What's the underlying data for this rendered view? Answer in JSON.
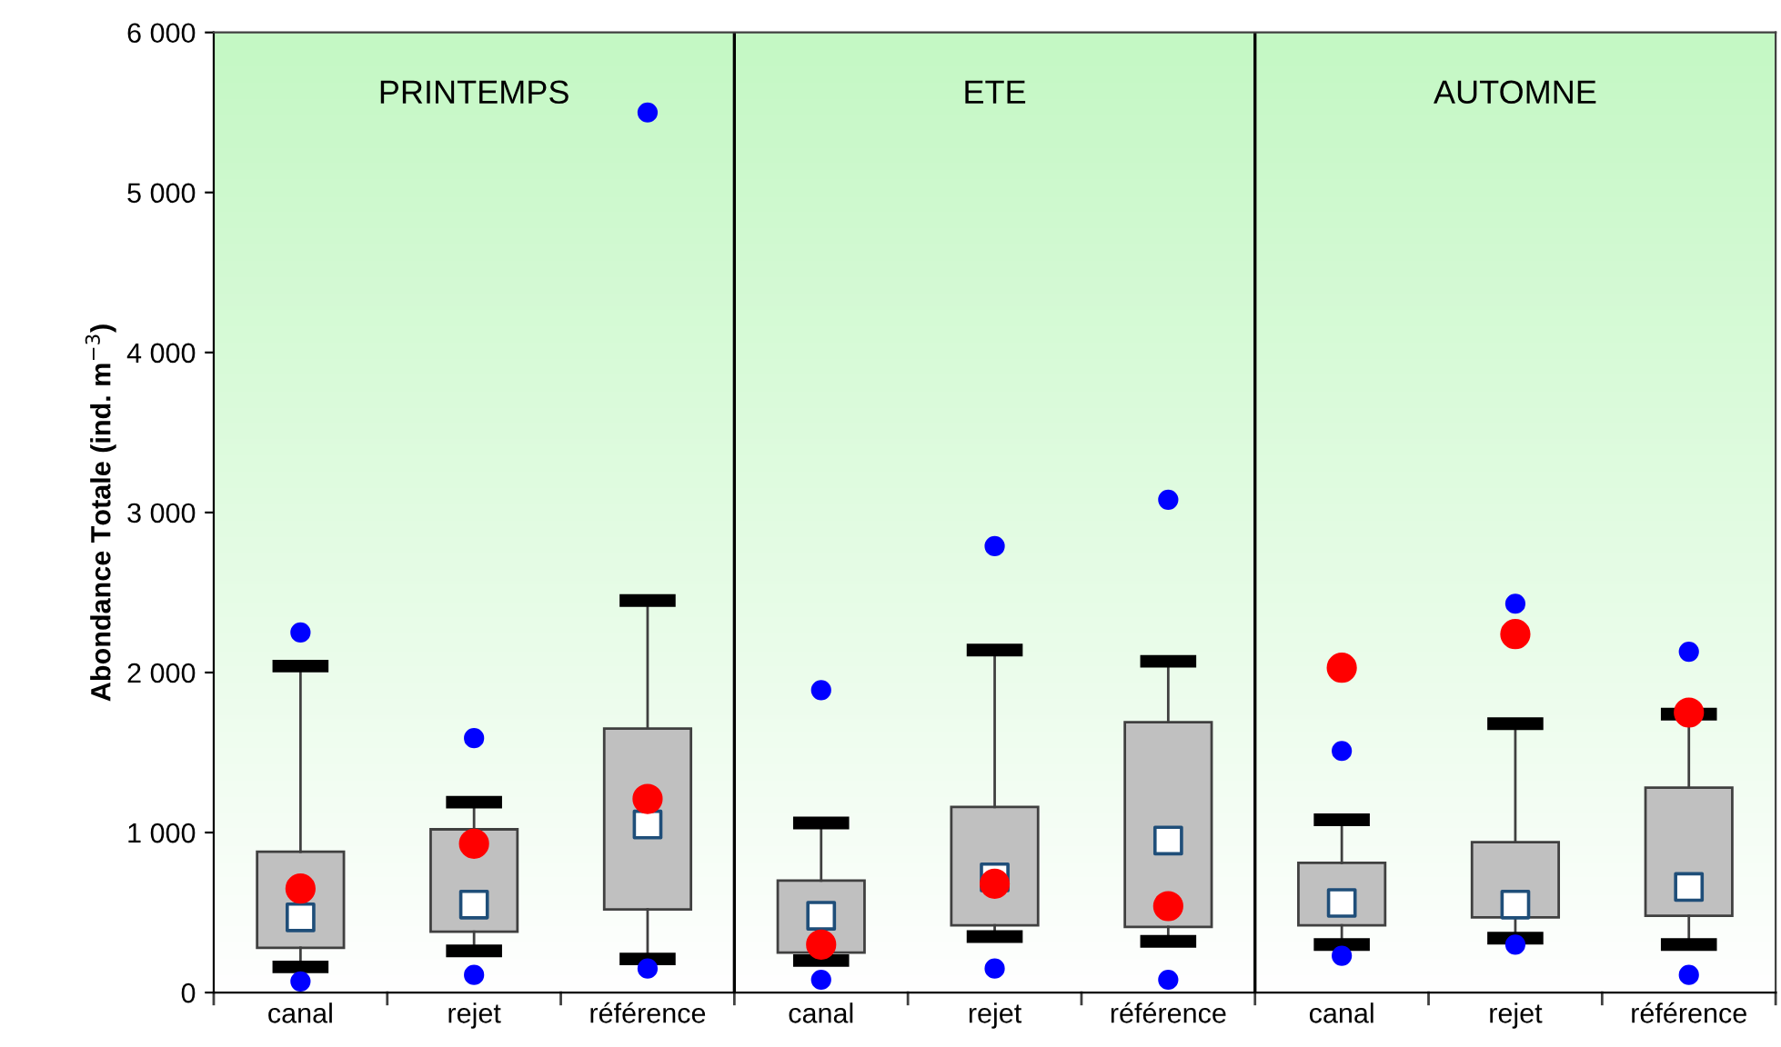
{
  "chart_data": {
    "type": "box",
    "ylabel": "Abondance Totale (ind. m$^{−3}$)",
    "categories": [
      "canal",
      "rejet",
      "référence",
      "canal",
      "rejet",
      "référence",
      "canal",
      "rejet",
      "référence"
    ],
    "annotations": [
      "PRINTEMPS",
      "ETE",
      "AUTOMNE"
    ],
    "ylim": [
      0,
      6000
    ],
    "yticks": [
      0,
      {
        "value": 1000,
        "label": "1 000"
      },
      {
        "value": 2000,
        "label": "2 000"
      },
      {
        "value": 3000,
        "label": "3 000"
      },
      {
        "value": 4000,
        "label": "4 000"
      },
      {
        "value": 5000,
        "label": "5 000"
      },
      {
        "value": 6000,
        "label": "6 000"
      }
    ],
    "grid": false,
    "legend": false,
    "series": [
      {
        "color": "#c0c0c0",
        "boxes": [
          {
            "low": 160,
            "q1": 280,
            "median": 470,
            "q3": 880,
            "high": 2040,
            "outliers": [
              70,
              2250
            ]
          },
          {
            "low": 260,
            "q1": 380,
            "median": 550,
            "q3": 1020,
            "high": 1190,
            "outliers": [
              110,
              1590
            ]
          },
          {
            "low": 210,
            "q1": 520,
            "median": 1050,
            "q3": 1650,
            "high": 2450,
            "outliers": [
              150,
              5500
            ]
          },
          {
            "low": 200,
            "q1": 250,
            "median": 480,
            "q3": 700,
            "high": 1060,
            "outliers": [
              80,
              1890
            ]
          },
          {
            "low": 350,
            "q1": 420,
            "median": 720,
            "q3": 1160,
            "high": 2140,
            "outliers": [
              150,
              2790
            ]
          },
          {
            "low": 320,
            "q1": 410,
            "median": 950,
            "q3": 1690,
            "high": 2070,
            "outliers": [
              80,
              3080
            ]
          },
          {
            "low": 300,
            "q1": 420,
            "median": 560,
            "q3": 810,
            "high": 1080,
            "outliers": [
              230,
              1510
            ]
          },
          {
            "low": 340,
            "q1": 470,
            "median": 550,
            "q3": 940,
            "high": 1680,
            "outliers": [
              300,
              2430
            ]
          },
          {
            "low": 300,
            "q1": 480,
            "median": 660,
            "q3": 1280,
            "high": 1740,
            "outliers": [
              110,
              2130
            ]
          }
        ]
      },
      {
        "type": "scatter",
        "color": "#ff0000",
        "values": [
          650,
          930,
          1210,
          300,
          680,
          540,
          2030,
          2240,
          1750
        ]
      }
    ]
  }
}
